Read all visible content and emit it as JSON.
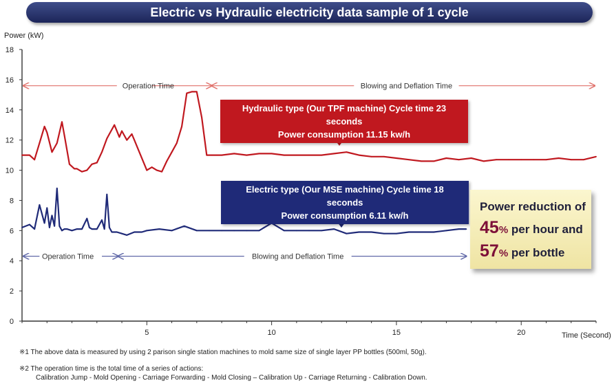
{
  "chart_data": {
    "type": "line",
    "title": "Electric vs Hydraulic electricity data sample of 1 cycle",
    "ylabel": "Power (kW)",
    "xlabel": "Time (Second)",
    "xlim": [
      0,
      23
    ],
    "ylim": [
      0,
      18
    ],
    "xticks": [
      5,
      10,
      15,
      20
    ],
    "yticks": [
      0,
      2,
      4,
      6,
      8,
      10,
      12,
      14,
      16,
      18
    ],
    "grid": false,
    "series": [
      {
        "name": "Hydraulic type (Our TPF machine)",
        "color": "#c0181f",
        "x": [
          0,
          0.3,
          0.5,
          0.7,
          0.9,
          1.0,
          1.2,
          1.4,
          1.6,
          1.7,
          1.9,
          2.1,
          2.2,
          2.4,
          2.6,
          2.8,
          3.0,
          3.2,
          3.4,
          3.5,
          3.7,
          3.9,
          4.0,
          4.2,
          4.4,
          4.5,
          4.7,
          4.9,
          5.0,
          5.2,
          5.4,
          5.6,
          5.8,
          6.0,
          6.2,
          6.4,
          6.6,
          6.8,
          7.0,
          7.2,
          7.4,
          7.6,
          7.8,
          8.0,
          8.5,
          9.0,
          9.5,
          10.0,
          10.5,
          11.0,
          11.5,
          12.0,
          12.5,
          13.0,
          13.5,
          14.0,
          14.5,
          15.0,
          15.5,
          16.0,
          16.5,
          17.0,
          17.5,
          18.0,
          18.5,
          19.0,
          19.5,
          20.0,
          20.5,
          21.0,
          21.5,
          22.0,
          22.5,
          23.0
        ],
        "values": [
          11.0,
          11.0,
          10.7,
          11.8,
          12.9,
          12.5,
          11.2,
          11.8,
          13.2,
          12.3,
          10.4,
          10.1,
          10.1,
          9.9,
          10.0,
          10.4,
          10.5,
          11.2,
          12.1,
          12.4,
          13.0,
          12.2,
          12.6,
          12.0,
          12.4,
          12.0,
          11.2,
          10.4,
          10.0,
          10.2,
          10.0,
          9.9,
          10.6,
          11.2,
          11.8,
          12.9,
          15.1,
          15.2,
          15.2,
          13.5,
          11.0,
          11.0,
          11.0,
          11.0,
          11.1,
          11.0,
          11.1,
          11.1,
          11.0,
          11.0,
          11.0,
          11.0,
          11.1,
          11.2,
          11.0,
          10.9,
          10.9,
          10.8,
          10.7,
          10.6,
          10.6,
          10.8,
          10.7,
          10.8,
          10.6,
          10.7,
          10.7,
          10.7,
          10.7,
          10.7,
          10.8,
          10.7,
          10.7,
          10.9
        ]
      },
      {
        "name": "Electric type (Our MSE machine)",
        "color": "#1f2a78",
        "x": [
          0,
          0.3,
          0.5,
          0.7,
          0.9,
          1.0,
          1.1,
          1.2,
          1.3,
          1.4,
          1.5,
          1.6,
          1.7,
          1.8,
          2.0,
          2.2,
          2.4,
          2.6,
          2.7,
          2.8,
          3.0,
          3.2,
          3.3,
          3.4,
          3.5,
          3.6,
          3.8,
          4.0,
          4.2,
          4.5,
          4.8,
          5.0,
          5.5,
          6.0,
          6.5,
          7.0,
          7.5,
          8.0,
          8.5,
          9.0,
          9.5,
          10.0,
          10.5,
          11.0,
          11.5,
          12.0,
          12.5,
          13.0,
          13.5,
          14.0,
          14.5,
          15.0,
          15.5,
          16.0,
          16.5,
          17.0,
          17.5,
          17.8
        ],
        "values": [
          6.2,
          6.4,
          6.1,
          7.7,
          6.5,
          7.5,
          6.2,
          7.0,
          6.3,
          8.8,
          6.3,
          6.0,
          6.1,
          6.1,
          6.0,
          6.1,
          6.1,
          6.8,
          6.2,
          6.1,
          6.1,
          6.7,
          6.1,
          8.4,
          6.2,
          5.9,
          5.9,
          5.8,
          5.7,
          5.9,
          5.9,
          6.0,
          6.1,
          6.0,
          6.3,
          6.0,
          6.0,
          6.0,
          6.0,
          6.0,
          6.0,
          6.5,
          6.0,
          6.0,
          6.0,
          6.0,
          6.1,
          5.8,
          5.9,
          5.9,
          5.8,
          5.8,
          5.9,
          5.9,
          5.9,
          6.0,
          6.1,
          6.1
        ]
      }
    ]
  },
  "annotations": {
    "hydraulic_operation": "Operation Time",
    "hydraulic_blowing": "Blowing and Deflation Time",
    "electric_operation": "Operation Time",
    "electric_blowing": "Blowing and Deflation Time",
    "hydraulic_line1": "Hydraulic type (Our TPF machine) Cycle time 23 seconds",
    "hydraulic_line2": "Power consumption 11.15 kw/h",
    "electric_line1": "Electric type (Our MSE machine) Cycle time  18 seconds",
    "electric_line2": "Power consumption 6.11 kw/h"
  },
  "reduction": {
    "line1": "Power reduction of",
    "value1": "45",
    "unit1": "%",
    "suffix1": " per hour and",
    "value2": "57",
    "unit2": "%",
    "suffix2": " per bottle"
  },
  "notes": {
    "note1": "※1 The above data is measured by using 2 parison single station machines to mold same size of single layer PP bottles (500ml, 50g).",
    "note2": "※2 The operation time is the total time of a series of actions:",
    "note3": "Calibration Jump - Mold Opening - Carriage Forwarding - Mold Closing – Calibration Up - Carriage Returning - Calibration Down."
  }
}
